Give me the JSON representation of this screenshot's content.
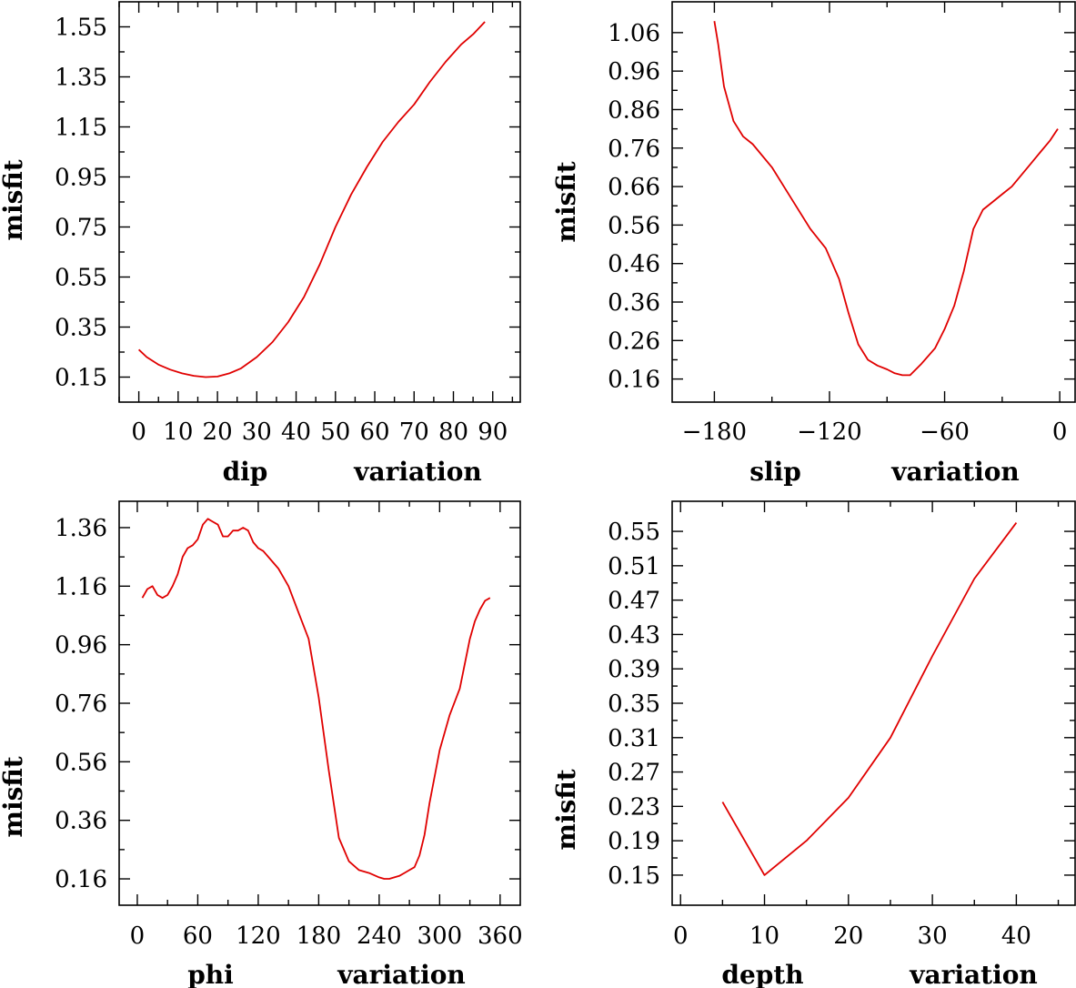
{
  "chart_data": [
    {
      "type": "line",
      "title": "",
      "xlabel": "dip",
      "xlabel2": "variation",
      "ylabel": "misfit",
      "xlim": [
        -5,
        97
      ],
      "ylim": [
        0.05,
        1.65
      ],
      "xticks": [
        0,
        10,
        20,
        30,
        40,
        50,
        60,
        70,
        80,
        90
      ],
      "xtick_labels": [
        "0",
        "10",
        "20",
        "30",
        "40",
        "50",
        "60",
        "70",
        "80",
        "90"
      ],
      "yticks": [
        0.15,
        0.35,
        0.55,
        0.75,
        0.95,
        1.15,
        1.35,
        1.55
      ],
      "ytick_labels": [
        "0.15",
        "0.35",
        "0.55",
        "0.75",
        "0.95",
        "1.15",
        "1.35",
        "1.55"
      ],
      "series": [
        {
          "name": "misfit",
          "color": "#e00000",
          "x": [
            0,
            2,
            5,
            8,
            11,
            14,
            17,
            20,
            23,
            26,
            30,
            34,
            38,
            42,
            46,
            50,
            54,
            58,
            62,
            66,
            70,
            74,
            78,
            82,
            85,
            88
          ],
          "y": [
            0.26,
            0.23,
            0.2,
            0.18,
            0.165,
            0.155,
            0.15,
            0.152,
            0.165,
            0.185,
            0.23,
            0.29,
            0.37,
            0.47,
            0.6,
            0.75,
            0.88,
            0.99,
            1.09,
            1.17,
            1.24,
            1.33,
            1.41,
            1.48,
            1.52,
            1.57
          ]
        }
      ]
    },
    {
      "type": "line",
      "title": "",
      "xlabel": "slip",
      "xlabel2": "variation",
      "ylabel": "misfit",
      "xlim": [
        -202,
        8
      ],
      "ylim": [
        0.1,
        1.14
      ],
      "xticks": [
        -180,
        -120,
        -60,
        0
      ],
      "xtick_labels": [
        "−180",
        "−120",
        "−60",
        "0"
      ],
      "yticks": [
        0.16,
        0.26,
        0.36,
        0.46,
        0.56,
        0.66,
        0.76,
        0.86,
        0.96,
        1.06
      ],
      "ytick_labels": [
        "0.16",
        "0.26",
        "0.36",
        "0.46",
        "0.56",
        "0.66",
        "0.76",
        "0.86",
        "0.96",
        "1.06"
      ],
      "series": [
        {
          "name": "misfit",
          "color": "#e00000",
          "x": [
            -180,
            -178,
            -175,
            -170,
            -165,
            -160,
            -150,
            -140,
            -130,
            -122,
            -115,
            -110,
            -105,
            -100,
            -95,
            -90,
            -86,
            -82,
            -78,
            -72,
            -65,
            -60,
            -55,
            -50,
            -45,
            -40,
            -35,
            -30,
            -25,
            -20,
            -15,
            -10,
            -5,
            -1
          ],
          "y": [
            1.09,
            1.03,
            0.92,
            0.83,
            0.79,
            0.77,
            0.71,
            0.63,
            0.55,
            0.5,
            0.42,
            0.33,
            0.25,
            0.21,
            0.195,
            0.185,
            0.175,
            0.17,
            0.17,
            0.2,
            0.24,
            0.29,
            0.35,
            0.44,
            0.55,
            0.6,
            0.62,
            0.64,
            0.66,
            0.69,
            0.72,
            0.75,
            0.78,
            0.81
          ]
        }
      ]
    },
    {
      "type": "line",
      "title": "",
      "xlabel": "phi",
      "xlabel2": "variation",
      "ylabel": "misfit",
      "xlim": [
        -18,
        380
      ],
      "ylim": [
        0.07,
        1.45
      ],
      "xticks": [
        0,
        60,
        120,
        180,
        240,
        300,
        360
      ],
      "xtick_labels": [
        "0",
        "60",
        "120",
        "180",
        "240",
        "300",
        "360"
      ],
      "yticks": [
        0.16,
        0.36,
        0.56,
        0.76,
        0.96,
        1.16,
        1.36
      ],
      "ytick_labels": [
        "0.16",
        "0.36",
        "0.56",
        "0.76",
        "0.96",
        "1.16",
        "1.36"
      ],
      "series": [
        {
          "name": "misfit",
          "color": "#e00000",
          "x": [
            5,
            10,
            15,
            20,
            25,
            30,
            35,
            40,
            45,
            50,
            55,
            60,
            65,
            70,
            75,
            80,
            85,
            90,
            95,
            100,
            105,
            110,
            115,
            120,
            125,
            130,
            140,
            150,
            160,
            170,
            180,
            190,
            200,
            210,
            220,
            230,
            240,
            245,
            250,
            255,
            260,
            265,
            270,
            275,
            280,
            285,
            290,
            300,
            310,
            320,
            330,
            335,
            340,
            345,
            350
          ],
          "y": [
            1.12,
            1.15,
            1.16,
            1.13,
            1.12,
            1.13,
            1.16,
            1.2,
            1.26,
            1.29,
            1.3,
            1.32,
            1.37,
            1.39,
            1.38,
            1.37,
            1.33,
            1.33,
            1.35,
            1.35,
            1.36,
            1.35,
            1.31,
            1.29,
            1.28,
            1.26,
            1.22,
            1.16,
            1.07,
            0.98,
            0.78,
            0.53,
            0.3,
            0.22,
            0.19,
            0.18,
            0.165,
            0.16,
            0.16,
            0.165,
            0.17,
            0.18,
            0.19,
            0.2,
            0.24,
            0.31,
            0.42,
            0.6,
            0.72,
            0.81,
            0.98,
            1.04,
            1.08,
            1.11,
            1.12
          ]
        }
      ]
    },
    {
      "type": "line",
      "title": "",
      "xlabel": "depth",
      "xlabel2": "variation",
      "ylabel": "misfit",
      "xlim": [
        -1,
        47
      ],
      "ylim": [
        0.115,
        0.585
      ],
      "xticks": [
        0,
        10,
        20,
        30,
        40
      ],
      "xtick_labels": [
        "0",
        "10",
        "20",
        "30",
        "40"
      ],
      "yticks": [
        0.15,
        0.19,
        0.23,
        0.27,
        0.31,
        0.35,
        0.39,
        0.43,
        0.47,
        0.51,
        0.55
      ],
      "ytick_labels": [
        "0.15",
        "0.19",
        "0.23",
        "0.27",
        "0.31",
        "0.35",
        "0.39",
        "0.43",
        "0.47",
        "0.51",
        "0.55"
      ],
      "series": [
        {
          "name": "misfit",
          "color": "#e00000",
          "x": [
            5,
            10,
            15,
            20,
            25,
            30,
            35,
            40
          ],
          "y": [
            0.235,
            0.15,
            0.19,
            0.24,
            0.31,
            0.405,
            0.495,
            0.56
          ]
        }
      ]
    }
  ]
}
